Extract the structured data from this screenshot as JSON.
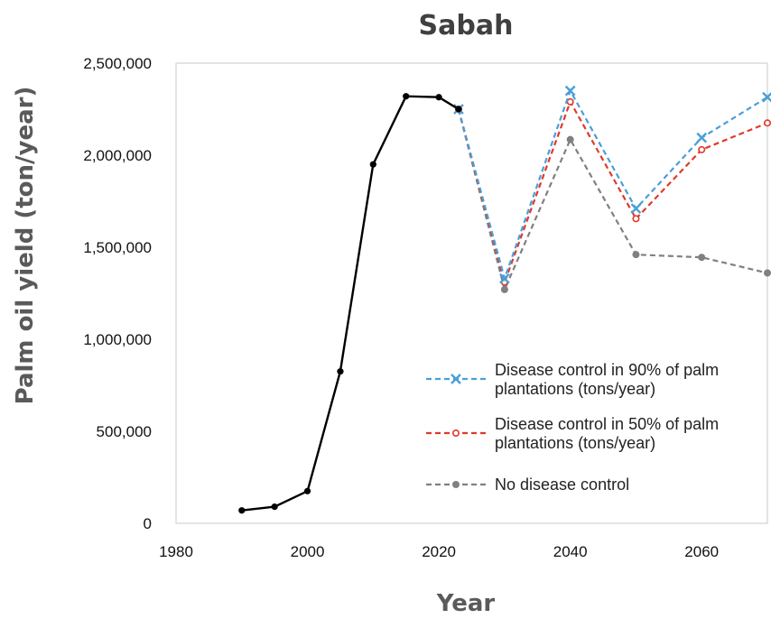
{
  "chart_data": {
    "type": "line",
    "title": "Sabah",
    "xlabel": "Year",
    "ylabel": "Palm oil yield (ton/year)",
    "xlim": [
      1980,
      2070
    ],
    "ylim": [
      0,
      2500000
    ],
    "xticks": [
      1980,
      2000,
      2020,
      2040,
      2060
    ],
    "xtick_labels": [
      "1980",
      "2000",
      "2020",
      "2040",
      "2060"
    ],
    "yticks": [
      0,
      500000,
      1000000,
      1500000,
      2000000,
      2500000
    ],
    "ytick_labels": [
      "0",
      "500,000",
      "1,000,000",
      "1,500,000",
      "2,000,000",
      "2,500,000"
    ],
    "grid": false,
    "legend_position": "bottom-right",
    "series": [
      {
        "name": "",
        "color": "#000000",
        "style": "solid",
        "marker": "dot",
        "x": [
          1990,
          1995,
          2000,
          2005,
          2010,
          2015,
          2020,
          2023
        ],
        "y": [
          70000,
          90000,
          175000,
          825000,
          1950000,
          2320000,
          2315000,
          2250000
        ]
      },
      {
        "name": "Disease control in 90% of palm plantations (tons/year)",
        "name_lines": [
          "Disease control in 90% of palm",
          "plantations (tons/year)"
        ],
        "color": "#4a9fd8",
        "style": "dashed",
        "marker": "x",
        "x": [
          2023,
          2030,
          2040,
          2050,
          2060,
          2070
        ],
        "y": [
          2250000,
          1330000,
          2350000,
          1710000,
          2095000,
          2315000
        ]
      },
      {
        "name": "Disease control in 50% of palm plantations (tons/year)",
        "name_lines": [
          "Disease control in 50% of palm",
          "plantations (tons/year)"
        ],
        "color": "#e0392b",
        "style": "dashed",
        "marker": "circle-open",
        "x": [
          2023,
          2030,
          2040,
          2050,
          2060,
          2070
        ],
        "y": [
          2250000,
          1310000,
          2290000,
          1655000,
          2030000,
          2175000
        ]
      },
      {
        "name": "No disease control",
        "name_lines": [
          "No disease control"
        ],
        "color": "#808080",
        "style": "dashed",
        "marker": "circle-filled",
        "x": [
          2023,
          2030,
          2040,
          2050,
          2060,
          2070
        ],
        "y": [
          2250000,
          1270000,
          2085000,
          1460000,
          1445000,
          1360000
        ]
      }
    ]
  }
}
